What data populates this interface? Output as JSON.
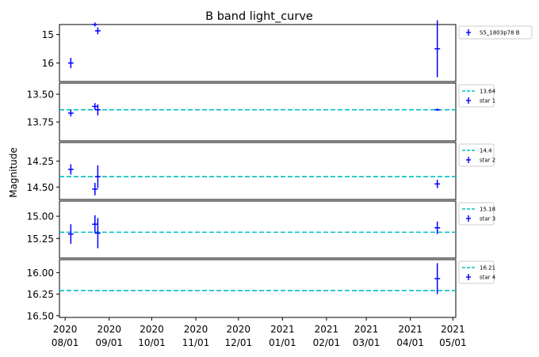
{
  "chart_data": {
    "type": "scatter",
    "title": "B band light_curve",
    "ylabel": "Magnitude",
    "x_tick_labels": [
      [
        "2020",
        "08/01"
      ],
      [
        "2020",
        "09/01"
      ],
      [
        "2020",
        "10/01"
      ],
      [
        "2020",
        "11/01"
      ],
      [
        "2020",
        "12/01"
      ],
      [
        "2021",
        "01/01"
      ],
      [
        "2021",
        "02/01"
      ],
      [
        "2021",
        "03/01"
      ],
      [
        "2021",
        "04/01"
      ],
      [
        "2021",
        "05/01"
      ]
    ],
    "x_ticks": [
      "2020-08-01",
      "2020-09-01",
      "2020-10-01",
      "2020-11-01",
      "2020-12-01",
      "2021-01-01",
      "2021-02-01",
      "2021-03-01",
      "2021-04-01",
      "2021-05-01"
    ],
    "xlim": [
      "2020-07-28",
      "2021-05-03"
    ],
    "colors": {
      "points": "#0000ff",
      "reference_line": "#00bfbf"
    },
    "panels": [
      {
        "legend": [
          "S5_1803p78 B"
        ],
        "ylim": [
          16.65,
          14.65
        ],
        "yticks": [
          15,
          16
        ],
        "ytick_labels": [
          "15",
          "16"
        ],
        "reference": null,
        "points": [
          {
            "x": "2020-08-05",
            "y": 16.0,
            "yerr": 0.18
          },
          {
            "x": "2020-08-22",
            "y": 14.65,
            "yerr": 0.07
          },
          {
            "x": "2020-08-24",
            "y": 14.87,
            "yerr": 0.12
          },
          {
            "x": "2021-04-20",
            "y": 15.5,
            "yerr": 1.0
          }
        ]
      },
      {
        "legend": [
          "13.64",
          "star 1"
        ],
        "ylim": [
          13.92,
          13.4
        ],
        "yticks": [
          13.5,
          13.75
        ],
        "ytick_labels": [
          "13.50",
          "13.75"
        ],
        "reference": 13.64,
        "points": [
          {
            "x": "2020-08-05",
            "y": 13.67,
            "yerr": 0.03
          },
          {
            "x": "2020-08-22",
            "y": 13.61,
            "yerr": 0.03
          },
          {
            "x": "2020-08-24",
            "y": 13.64,
            "yerr": 0.05
          },
          {
            "x": "2021-04-20",
            "y": 13.64,
            "yerr": 0.01
          }
        ]
      },
      {
        "legend": [
          "14.4",
          "star 2"
        ],
        "ylim": [
          14.62,
          14.07
        ],
        "yticks": [
          14.25,
          14.5
        ],
        "ytick_labels": [
          "14.25",
          "14.50"
        ],
        "reference": 14.4,
        "points": [
          {
            "x": "2020-08-05",
            "y": 14.33,
            "yerr": 0.05
          },
          {
            "x": "2020-08-22",
            "y": 14.52,
            "yerr": 0.06
          },
          {
            "x": "2020-08-24",
            "y": 14.4,
            "yerr": 0.11
          },
          {
            "x": "2021-04-20",
            "y": 14.47,
            "yerr": 0.04
          }
        ]
      },
      {
        "legend": [
          "15.18",
          "star 3"
        ],
        "ylim": [
          15.47,
          14.83
        ],
        "yticks": [
          15.0,
          15.25
        ],
        "ytick_labels": [
          "15.00",
          "15.25"
        ],
        "reference": 15.18,
        "points": [
          {
            "x": "2020-08-05",
            "y": 15.2,
            "yerr": 0.11
          },
          {
            "x": "2020-08-22",
            "y": 15.09,
            "yerr": 0.1
          },
          {
            "x": "2020-08-24",
            "y": 15.19,
            "yerr": 0.17
          },
          {
            "x": "2021-04-20",
            "y": 15.13,
            "yerr": 0.07
          }
        ]
      },
      {
        "legend": [
          "16.21",
          "star 4"
        ],
        "ylim": [
          16.52,
          15.85
        ],
        "yticks": [
          16.0,
          16.25,
          16.5
        ],
        "ytick_labels": [
          "16.00",
          "16.25",
          "16.50"
        ],
        "reference": 16.21,
        "points": [
          {
            "x": "2021-04-20",
            "y": 16.07,
            "yerr": 0.18
          }
        ]
      }
    ]
  }
}
